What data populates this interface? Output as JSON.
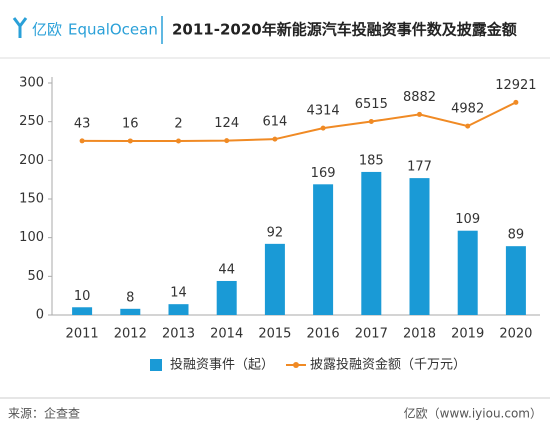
{
  "header": {
    "logo_cn": "亿欧",
    "logo_en": "EqualOcean",
    "title": "2011-2020年新能源汽车投融资事件数及披露金额"
  },
  "chart_data": {
    "type": "combo",
    "categories": [
      "2011",
      "2012",
      "2013",
      "2014",
      "2015",
      "2016",
      "2017",
      "2018",
      "2019",
      "2020"
    ],
    "series": [
      {
        "name": "投融资事件（起）",
        "type": "bar",
        "color": "#1a9ad6",
        "values": [
          10,
          8,
          14,
          44,
          92,
          169,
          185,
          177,
          109,
          89
        ]
      },
      {
        "name": "披露投融资金额（千万元）",
        "type": "line",
        "axis": "y2",
        "color": "#f08a24",
        "values": [
          43,
          16,
          2,
          124,
          614,
          4314,
          6515,
          8882,
          4982,
          12921
        ]
      }
    ],
    "ylim": [
      0,
      300
    ],
    "yticks": [
      0,
      50,
      100,
      150,
      200,
      250,
      300
    ],
    "y2lim": [
      -58145,
      19382
    ]
  },
  "footer": {
    "source": "来源：企查查",
    "credit": "亿欧（www.iyiou.com）"
  }
}
